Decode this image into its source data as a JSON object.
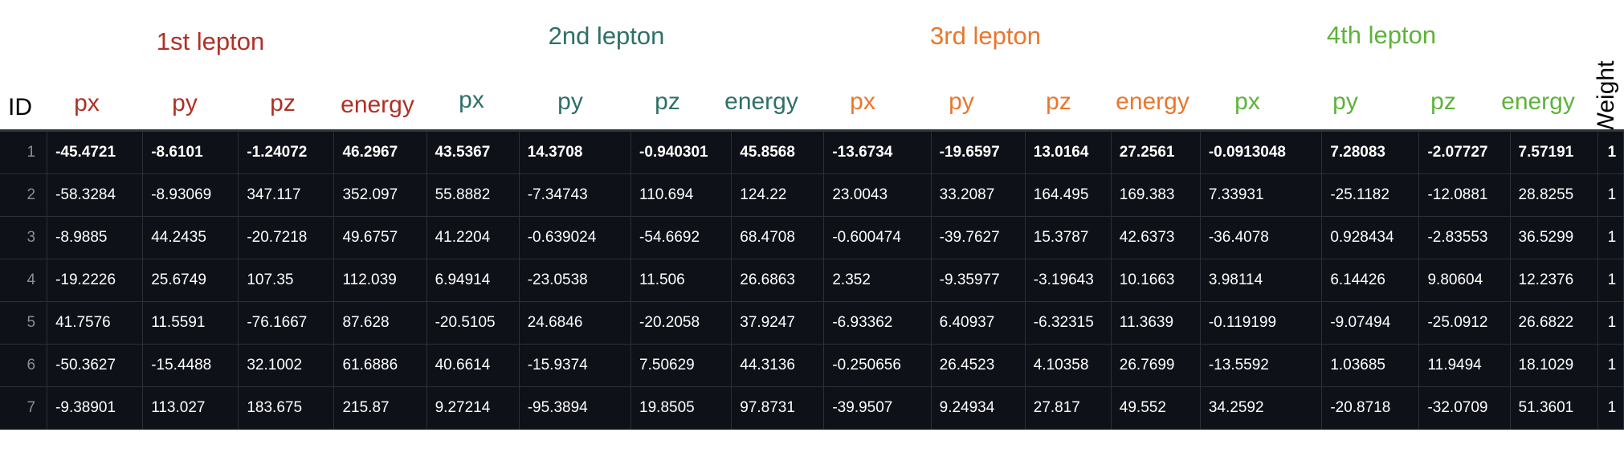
{
  "header": {
    "groups": [
      {
        "title": "1st lepton",
        "color": "#b03026"
      },
      {
        "title": "2nd lepton",
        "color": "#2f6f68"
      },
      {
        "title": "3rd lepton",
        "color": "#e8772e"
      },
      {
        "title": "4th lepton",
        "color": "#5db33b"
      }
    ],
    "id_label": "ID",
    "weight_label": "Weight",
    "columns": [
      "px",
      "py",
      "pz",
      "energy",
      "px",
      "py",
      "pz",
      "energy",
      "px",
      "py",
      "pz",
      "energy",
      "px",
      "py",
      "pz",
      "energy"
    ]
  },
  "table": {
    "rows": [
      {
        "id": "1",
        "cells": [
          "-45.4721",
          "-8.6101",
          "-1.24072",
          "46.2967",
          "43.5367",
          "14.3708",
          "-0.940301",
          "45.8568",
          "-13.6734",
          "-19.6597",
          "13.0164",
          "27.2561",
          "-0.0913048",
          "7.28083",
          "-2.07727",
          "7.57191"
        ],
        "weight": "1"
      },
      {
        "id": "2",
        "cells": [
          "-58.3284",
          "-8.93069",
          "347.117",
          "352.097",
          "55.8882",
          "-7.34743",
          "110.694",
          "124.22",
          "23.0043",
          "33.2087",
          "164.495",
          "169.383",
          "7.33931",
          "-25.1182",
          "-12.0881",
          "28.8255"
        ],
        "weight": "1"
      },
      {
        "id": "3",
        "cells": [
          "-8.9885",
          "44.2435",
          "-20.7218",
          "49.6757",
          "41.2204",
          "-0.639024",
          "-54.6692",
          "68.4708",
          "-0.600474",
          "-39.7627",
          "15.3787",
          "42.6373",
          "-36.4078",
          "0.928434",
          "-2.83553",
          "36.5299"
        ],
        "weight": "1"
      },
      {
        "id": "4",
        "cells": [
          "-19.2226",
          "25.6749",
          "107.35",
          "112.039",
          "6.94914",
          "-23.0538",
          "11.506",
          "26.6863",
          "2.352",
          "-9.35977",
          "-3.19643",
          "10.1663",
          "3.98114",
          "6.14426",
          "9.80604",
          "12.2376"
        ],
        "weight": "1"
      },
      {
        "id": "5",
        "cells": [
          "41.7576",
          "11.5591",
          "-76.1667",
          "87.628",
          "-20.5105",
          "24.6846",
          "-20.2058",
          "37.9247",
          "-6.93362",
          "6.40937",
          "-6.32315",
          "11.3639",
          "-0.119199",
          "-9.07494",
          "-25.0912",
          "26.6822"
        ],
        "weight": "1"
      },
      {
        "id": "6",
        "cells": [
          "-50.3627",
          "-15.4488",
          "32.1002",
          "61.6886",
          "40.6614",
          "-15.9374",
          "7.50629",
          "44.3136",
          "-0.250656",
          "26.4523",
          "4.10358",
          "26.7699",
          "-13.5592",
          "1.03685",
          "11.9494",
          "18.1029"
        ],
        "weight": "1"
      },
      {
        "id": "7",
        "cells": [
          "-9.38901",
          "113.027",
          "183.675",
          "215.87",
          "9.27214",
          "-95.3894",
          "19.8505",
          "97.8731",
          "-39.9507",
          "9.24934",
          "27.817",
          "49.552",
          "34.2592",
          "-20.8718",
          "-32.0709",
          "51.3601"
        ],
        "weight": "1"
      }
    ]
  }
}
